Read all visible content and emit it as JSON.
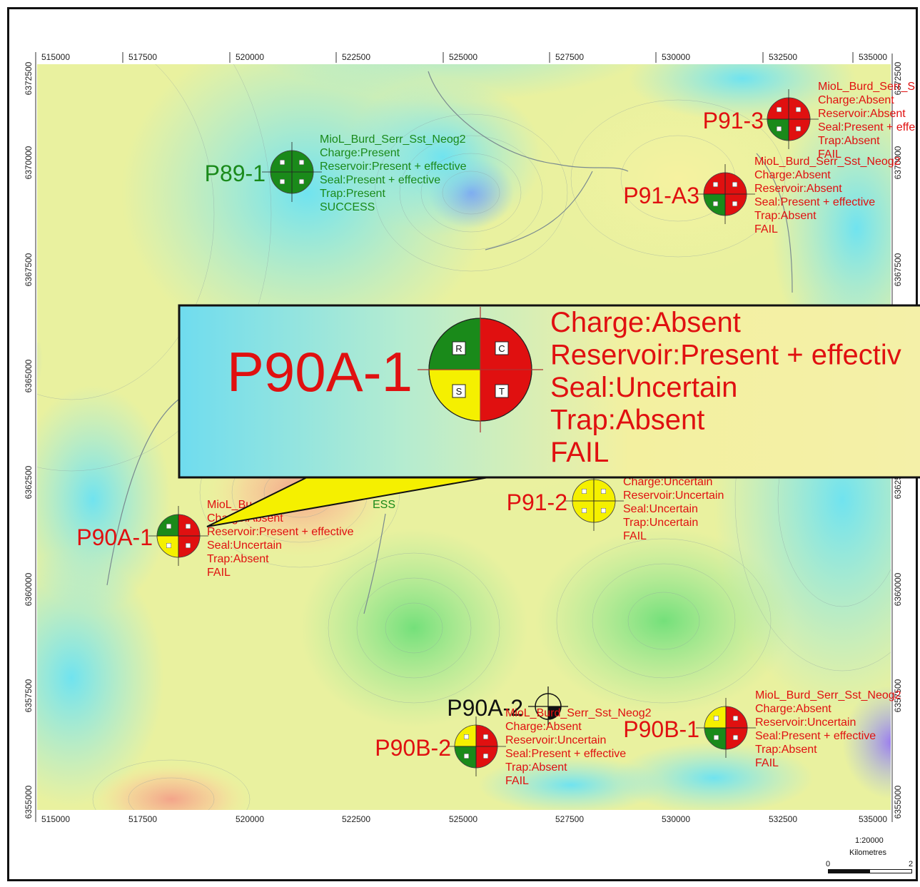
{
  "map": {
    "x_ticks": [
      "515000",
      "517500",
      "520000",
      "522500",
      "525000",
      "527500",
      "530000",
      "532500",
      "535000"
    ],
    "y_ticks": [
      "6372500",
      "6370000",
      "6367500",
      "6365000",
      "6362500",
      "6360000",
      "6357500",
      "6355000"
    ],
    "scale": {
      "ratio": "1:20000",
      "unit": "Kilometres",
      "start": "0",
      "end": "2"
    }
  },
  "wells": [
    {
      "id": "P89-1",
      "title": "MioL_Burd_Serr_Sst_Neog2",
      "lines": [
        "Charge:Present",
        "Reservoir:Present + effective",
        "Seal:Present + effective",
        "Trap:Present",
        "SUCCESS"
      ],
      "color": "#1a8a1a",
      "quadrants": {
        "R": "green",
        "C": "green",
        "S": "green",
        "T": "green"
      }
    },
    {
      "id": "P91-3",
      "title": "MioL_Burd_Serr_S",
      "lines": [
        "Charge:Absent",
        "Reservoir:Absent",
        "Seal:Present + effe",
        "Trap:Absent",
        "FAIL"
      ],
      "color": "#e01010",
      "quadrants": {
        "R": "red",
        "C": "red",
        "S": "green",
        "T": "red"
      }
    },
    {
      "id": "P91-A3",
      "title": "MioL_Burd_Serr_Sst_Neog2",
      "lines": [
        "Charge:Absent",
        "Reservoir:Absent",
        "Seal:Present + effective",
        "Trap:Absent",
        "FAIL"
      ],
      "color": "#e01010",
      "quadrants": {
        "R": "red",
        "C": "red",
        "S": "green",
        "T": "red"
      }
    },
    {
      "id": "P90A-1",
      "title": "MioL_Bu",
      "lines": [
        "Charge:Absent",
        "Reservoir:Present + effective",
        "Seal:Uncertain",
        "Trap:Absent",
        "FAIL"
      ],
      "color": "#e01010",
      "quadrants": {
        "R": "green",
        "C": "red",
        "S": "yellow",
        "T": "red"
      }
    },
    {
      "id": "P91-2",
      "title": "",
      "lines": [
        "Charge:Uncertain",
        "Reservoir:Uncertain",
        "Seal:Uncertain",
        "Trap:Uncertain",
        "FAIL"
      ],
      "color": "#e01010",
      "quadrants": {
        "R": "yellow",
        "C": "yellow",
        "S": "yellow",
        "T": "yellow"
      }
    },
    {
      "id": "P90A-2",
      "title": "MioL_Burd_Serr_Sst_Neog2",
      "lines": [],
      "color": "#111111"
    },
    {
      "id": "P90B-2",
      "title": "",
      "lines": [
        "Charge:Absent",
        "Reservoir:Uncertain",
        "Seal:Present + effective",
        "Trap:Absent",
        "FAIL"
      ],
      "color": "#e01010",
      "quadrants": {
        "R": "yellow",
        "C": "red",
        "S": "green",
        "T": "red"
      }
    },
    {
      "id": "P90B-1",
      "title": "MioL_Burd_Serr_Sst_Neog2",
      "lines": [
        "Charge:Absent",
        "Reservoir:Uncertain",
        "Seal:Present + effective",
        "Trap:Absent",
        "FAIL"
      ],
      "color": "#e01010",
      "quadrants": {
        "R": "yellow",
        "C": "red",
        "S": "green",
        "T": "red"
      }
    }
  ],
  "callout": {
    "id": "P90A-1",
    "lines": [
      "Charge:Absent",
      "Reservoir:Present + effectiv",
      "Seal:Uncertain",
      "Trap:Absent",
      "FAIL"
    ],
    "quadrant_letters": [
      "R",
      "C",
      "S",
      "T"
    ],
    "hidden_fragments": [
      "ESS"
    ]
  },
  "colors": {
    "fail": "#e01010",
    "success": "#1a8a1a",
    "green": "#1a8a1a",
    "red": "#e01010",
    "yellow": "#f5f000"
  }
}
